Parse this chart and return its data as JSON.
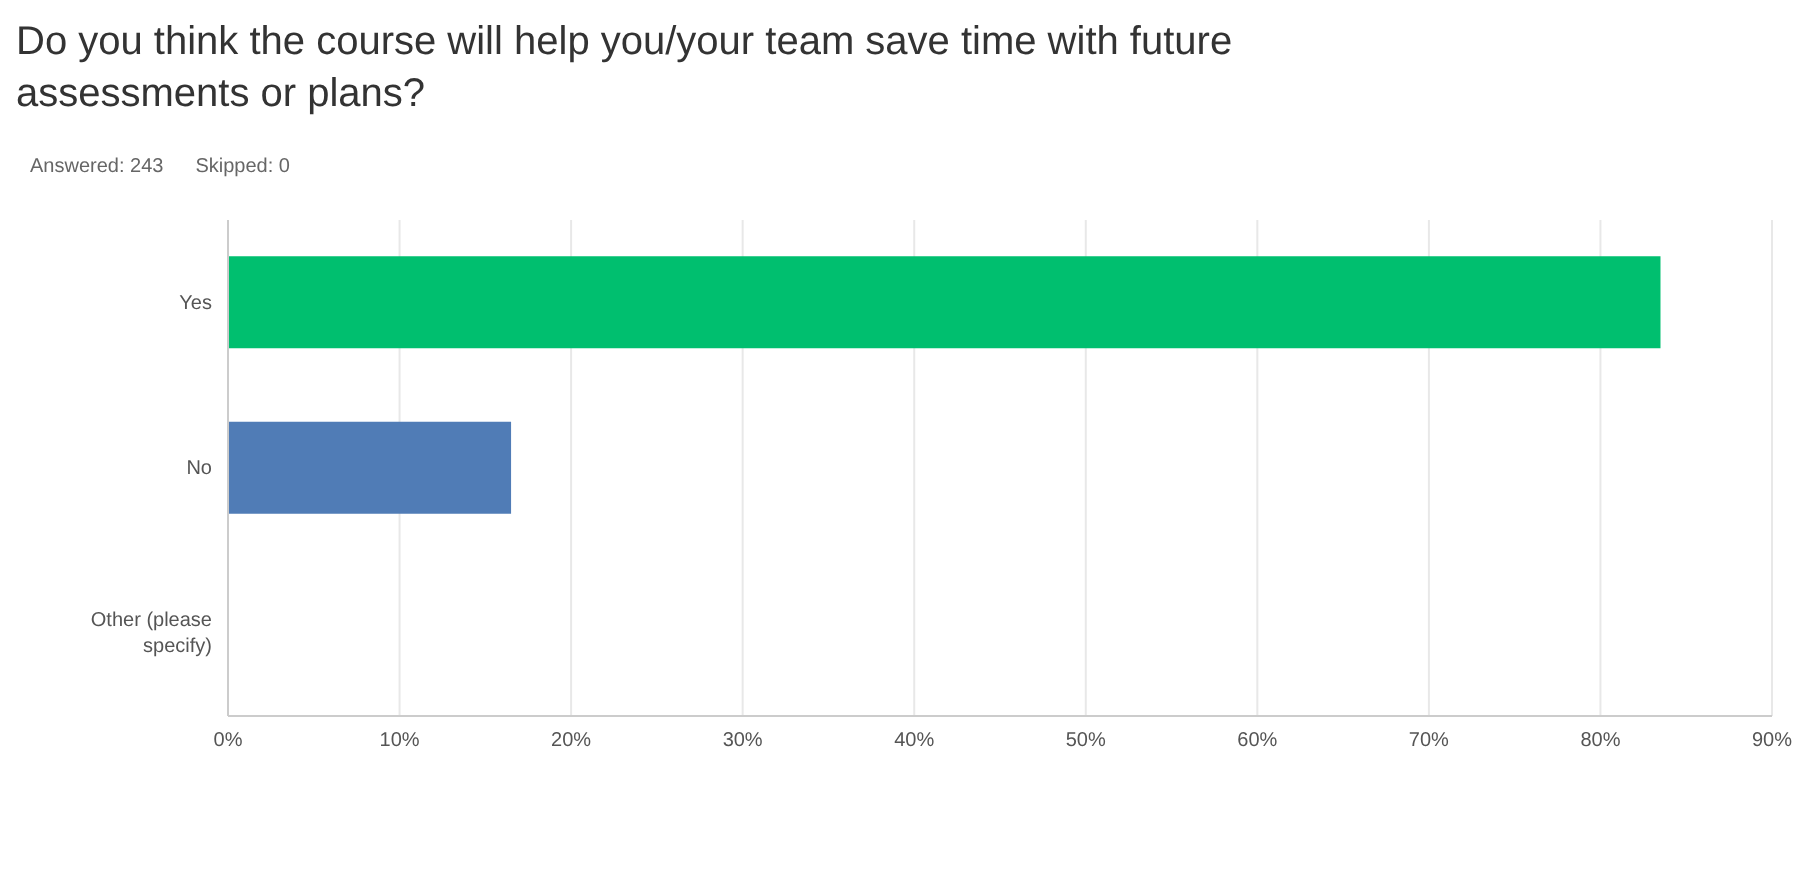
{
  "chart_data": {
    "type": "bar",
    "orientation": "horizontal",
    "title": "Do you think the course will help you/your team save time with future assessments or plans?",
    "annotations": [
      "Answered: 243",
      "Skipped: 0"
    ],
    "categories": [
      "Yes",
      "No",
      "Other (please specify)"
    ],
    "values": [
      83.5,
      16.5,
      0
    ],
    "colors": [
      "#00bf6f",
      "#507cb6",
      "#507cb6"
    ],
    "xlim": [
      0,
      90
    ],
    "xticks": [
      {
        "value": 0,
        "label": "0%"
      },
      {
        "value": 10,
        "label": "10%"
      },
      {
        "value": 20,
        "label": "20%"
      },
      {
        "value": 30,
        "label": "30%"
      },
      {
        "value": 40,
        "label": "40%"
      },
      {
        "value": 50,
        "label": "50%"
      },
      {
        "value": 60,
        "label": "60%"
      },
      {
        "value": 70,
        "label": "70%"
      },
      {
        "value": 80,
        "label": "80%"
      },
      {
        "value": 90,
        "label": "90%"
      }
    ],
    "grid": "x",
    "legend": false
  }
}
